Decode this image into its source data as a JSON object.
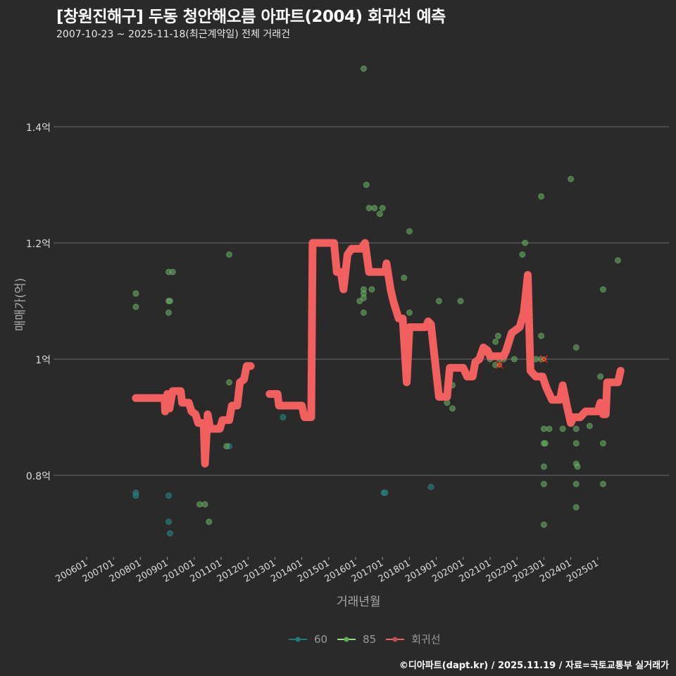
{
  "header": {
    "title": "[창원진해구] 두동 청안해오름 아파트(2004) 회귀선 예측",
    "subtitle": "2007-10-23 ~ 2025-11-18(최근계약일) 전체 거래건"
  },
  "footer": {
    "credit": "©디아파트(dapt.kr) / 2025.11.19 / 자료=국토교통부 실거래가"
  },
  "colors": {
    "background": "#2b2a2b",
    "grid": "#6a6a6a",
    "series_60": "#1f7a78",
    "series_85": "#5fae5a",
    "regression": "#f25f5f"
  },
  "chart_data": {
    "type": "scatter",
    "title": "[창원진해구] 두동 청안해오름 아파트(2004) 회귀선 예측",
    "subtitle": "2007-10-23 ~ 2025-11-18(최근계약일) 전체 거래건",
    "xlabel": "거래년월",
    "ylabel": "매매가(억)",
    "x_ticks": [
      "200601",
      "200701",
      "200801",
      "200901",
      "201001",
      "201101",
      "201201",
      "201301",
      "201401",
      "201501",
      "201601",
      "201701",
      "201801",
      "201901",
      "202001",
      "202101",
      "202201",
      "202301",
      "202401",
      "202501"
    ],
    "y_ticks": [
      {
        "value": 0.8,
        "label": "0.8억"
      },
      {
        "value": 1.0,
        "label": "1억"
      },
      {
        "value": 1.2,
        "label": "1.2억"
      },
      {
        "value": 1.4,
        "label": "1.4억"
      }
    ],
    "ylim": [
      0.66,
      1.52
    ],
    "grid": true,
    "legend_position": "bottom",
    "legend": [
      {
        "name": "60",
        "color": "#1f7a78"
      },
      {
        "name": "85",
        "color": "#5fae5a"
      },
      {
        "name": "회귀선",
        "color": "#f25f5f"
      }
    ],
    "series": [
      {
        "name": "60",
        "type": "scatter",
        "points": [
          [
            2007.83,
            0.77
          ],
          [
            2007.83,
            0.765
          ],
          [
            2009.05,
            0.765
          ],
          [
            2009.05,
            0.72
          ],
          [
            2009.1,
            0.7
          ],
          [
            2011.3,
            0.85
          ],
          [
            2013.1,
            0.94
          ],
          [
            2013.3,
            0.9
          ],
          [
            2017.05,
            0.77
          ],
          [
            2017.1,
            0.77
          ],
          [
            2018.8,
            0.78
          ]
        ]
      },
      {
        "name": "85",
        "type": "scatter",
        "points": [
          [
            2007.83,
            1.113
          ],
          [
            2007.83,
            1.09
          ],
          [
            2009.05,
            1.15
          ],
          [
            2009.2,
            1.15
          ],
          [
            2009.05,
            1.1
          ],
          [
            2009.1,
            1.1
          ],
          [
            2009.05,
            1.08
          ],
          [
            2010.2,
            0.75
          ],
          [
            2010.4,
            0.75
          ],
          [
            2010.55,
            0.72
          ],
          [
            2011.3,
            0.96
          ],
          [
            2011.3,
            1.18
          ],
          [
            2011.2,
            0.85
          ],
          [
            2016.3,
            1.5
          ],
          [
            2016.15,
            1.1
          ],
          [
            2016.3,
            1.12
          ],
          [
            2016.3,
            1.113
          ],
          [
            2016.3,
            1.105
          ],
          [
            2016.3,
            1.08
          ],
          [
            2016.4,
            1.3
          ],
          [
            2016.5,
            1.26
          ],
          [
            2016.6,
            1.12
          ],
          [
            2016.7,
            1.26
          ],
          [
            2016.9,
            1.25
          ],
          [
            2017.0,
            1.26
          ],
          [
            2017.8,
            1.14
          ],
          [
            2018.0,
            1.22
          ],
          [
            2018.0,
            1.08
          ],
          [
            2019.1,
            1.1
          ],
          [
            2019.4,
            0.935
          ],
          [
            2019.4,
            0.925
          ],
          [
            2019.6,
            0.955
          ],
          [
            2019.6,
            0.915
          ],
          [
            2019.9,
            1.1
          ],
          [
            2021.0,
            1.0
          ],
          [
            2021.2,
            1.03
          ],
          [
            2021.3,
            1.04
          ],
          [
            2021.2,
            0.99
          ],
          [
            2021.35,
            1.0
          ],
          [
            2021.5,
            1.0
          ],
          [
            2021.9,
            1.0
          ],
          [
            2022.2,
            1.18
          ],
          [
            2022.3,
            1.2
          ],
          [
            2022.7,
            1.0
          ],
          [
            2022.9,
            1.28
          ],
          [
            2022.9,
            1.04
          ],
          [
            2022.9,
            1.0
          ],
          [
            2023.0,
            0.88
          ],
          [
            2023.0,
            0.855
          ],
          [
            2023.05,
            0.855
          ],
          [
            2023.0,
            0.815
          ],
          [
            2023.0,
            0.785
          ],
          [
            2023.0,
            0.715
          ],
          [
            2023.2,
            0.88
          ],
          [
            2023.7,
            0.88
          ],
          [
            2024.0,
            1.31
          ],
          [
            2024.2,
            1.02
          ],
          [
            2024.2,
            0.88
          ],
          [
            2024.2,
            0.855
          ],
          [
            2024.2,
            0.82
          ],
          [
            2024.25,
            0.815
          ],
          [
            2024.2,
            0.785
          ],
          [
            2024.2,
            0.745
          ],
          [
            2024.7,
            0.885
          ],
          [
            2025.1,
            0.97
          ],
          [
            2025.2,
            1.12
          ],
          [
            2025.2,
            0.855
          ],
          [
            2025.2,
            0.785
          ],
          [
            2025.75,
            1.17
          ]
        ]
      },
      {
        "name": "회귀선",
        "type": "line",
        "segments": [
          [
            [
              2007.83,
              0.933
            ],
            [
              2008.9,
              0.933
            ],
            [
              2008.92,
              0.91
            ],
            [
              2009.0,
              0.94
            ],
            [
              2009.08,
              0.915
            ],
            [
              2009.2,
              0.945
            ],
            [
              2009.5,
              0.945
            ],
            [
              2009.55,
              0.925
            ],
            [
              2009.8,
              0.925
            ],
            [
              2009.9,
              0.91
            ],
            [
              2010.05,
              0.905
            ],
            [
              2010.15,
              0.89
            ],
            [
              2010.35,
              0.89
            ],
            [
              2010.4,
              0.82
            ],
            [
              2010.5,
              0.905
            ],
            [
              2010.6,
              0.88
            ],
            [
              2010.95,
              0.88
            ],
            [
              2011.05,
              0.895
            ],
            [
              2011.3,
              0.895
            ],
            [
              2011.4,
              0.92
            ],
            [
              2011.6,
              0.92
            ],
            [
              2011.7,
              0.96
            ],
            [
              2011.85,
              0.965
            ],
            [
              2011.95,
              0.988
            ],
            [
              2012.1,
              0.988
            ]
          ],
          [
            [
              2012.8,
              0.94
            ],
            [
              2013.1,
              0.94
            ],
            [
              2013.15,
              0.92
            ],
            [
              2014.0,
              0.92
            ],
            [
              2014.1,
              0.9
            ],
            [
              2014.35,
              0.9
            ],
            [
              2014.4,
              1.2
            ],
            [
              2015.2,
              1.2
            ],
            [
              2015.3,
              1.15
            ],
            [
              2015.45,
              1.15
            ],
            [
              2015.55,
              1.12
            ],
            [
              2015.7,
              1.18
            ],
            [
              2015.85,
              1.19
            ],
            [
              2016.2,
              1.19
            ],
            [
              2016.35,
              1.2
            ],
            [
              2016.5,
              1.15
            ],
            [
              2017.1,
              1.15
            ],
            [
              2017.15,
              1.165
            ],
            [
              2017.3,
              1.12
            ],
            [
              2017.4,
              1.1
            ],
            [
              2017.6,
              1.07
            ],
            [
              2017.75,
              1.07
            ],
            [
              2017.9,
              0.96
            ],
            [
              2018.0,
              1.055
            ],
            [
              2018.6,
              1.055
            ],
            [
              2018.7,
              1.065
            ],
            [
              2018.8,
              1.06
            ],
            [
              2019.1,
              0.935
            ],
            [
              2019.4,
              0.935
            ],
            [
              2019.5,
              0.985
            ],
            [
              2020.0,
              0.985
            ],
            [
              2020.15,
              0.97
            ],
            [
              2020.35,
              0.97
            ],
            [
              2020.45,
              0.995
            ],
            [
              2020.6,
              1.0
            ],
            [
              2020.75,
              1.02
            ],
            [
              2020.9,
              1.015
            ],
            [
              2021.0,
              1.005
            ],
            [
              2021.5,
              1.005
            ],
            [
              2021.6,
              1.015
            ],
            [
              2021.8,
              1.045
            ],
            [
              2022.1,
              1.055
            ],
            [
              2022.25,
              1.08
            ],
            [
              2022.4,
              1.145
            ],
            [
              2022.5,
              0.98
            ],
            [
              2022.7,
              0.97
            ],
            [
              2022.95,
              0.97
            ],
            [
              2023.1,
              0.95
            ],
            [
              2023.3,
              0.93
            ],
            [
              2023.6,
              0.93
            ],
            [
              2023.7,
              0.955
            ],
            [
              2023.85,
              0.92
            ],
            [
              2024.0,
              0.89
            ],
            [
              2024.1,
              0.9
            ],
            [
              2024.35,
              0.9
            ],
            [
              2024.55,
              0.91
            ],
            [
              2025.0,
              0.91
            ],
            [
              2025.1,
              0.925
            ],
            [
              2025.2,
              0.905
            ],
            [
              2025.3,
              0.905
            ],
            [
              2025.35,
              0.96
            ],
            [
              2025.75,
              0.96
            ],
            [
              2025.85,
              0.98
            ]
          ]
        ]
      }
    ],
    "outlier_markers": [
      [
        2021.35,
        0.99
      ],
      [
        2023.0,
        1.0
      ]
    ]
  }
}
